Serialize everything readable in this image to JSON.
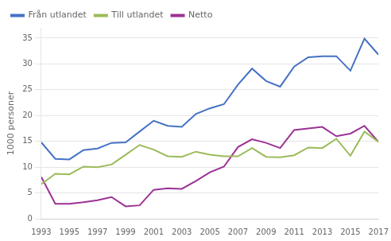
{
  "chart_data": {
    "type": "line",
    "ylabel": "1000 personer",
    "x": [
      1993,
      1994,
      1995,
      1996,
      1997,
      1998,
      1999,
      2000,
      2001,
      2002,
      2003,
      2004,
      2005,
      2006,
      2007,
      2008,
      2009,
      2010,
      2011,
      2012,
      2013,
      2014,
      2015,
      2016,
      2017
    ],
    "series": [
      {
        "name": "Från utlandet",
        "color": "#4472C4",
        "values": [
          14.8,
          11.6,
          11.5,
          13.3,
          13.6,
          14.7,
          14.8,
          16.9,
          19.0,
          18.0,
          17.8,
          20.3,
          21.4,
          22.2,
          26.0,
          29.1,
          26.7,
          25.6,
          29.5,
          31.3,
          31.5,
          31.5,
          28.7,
          34.9,
          31.8
        ]
      },
      {
        "name": "Till utlandet",
        "color": "#9BBB59",
        "values": [
          6.7,
          8.7,
          8.6,
          10.1,
          10.0,
          10.5,
          12.4,
          14.3,
          13.4,
          12.1,
          12.0,
          13.0,
          12.4,
          12.1,
          12.1,
          13.7,
          12.0,
          11.9,
          12.3,
          13.8,
          13.7,
          15.5,
          12.2,
          16.9,
          14.9
        ]
      },
      {
        "name": "Netto",
        "color": "#9B3293",
        "values": [
          8.1,
          2.9,
          2.9,
          3.2,
          3.6,
          4.2,
          2.4,
          2.6,
          5.6,
          5.9,
          5.8,
          7.3,
          9.0,
          10.1,
          13.9,
          15.4,
          14.7,
          13.7,
          17.2,
          17.5,
          17.8,
          16.0,
          16.5,
          18.0,
          14.9
        ]
      }
    ],
    "xlim": [
      1993,
      2017
    ],
    "xticks": [
      1993,
      1995,
      1997,
      1999,
      2001,
      2003,
      2005,
      2007,
      2009,
      2011,
      2013,
      2015,
      2017
    ],
    "ylim": [
      0,
      37
    ],
    "yticks": [
      0,
      5,
      10,
      15,
      20,
      25,
      30,
      35
    ],
    "grid": true,
    "legend": "upper left"
  }
}
